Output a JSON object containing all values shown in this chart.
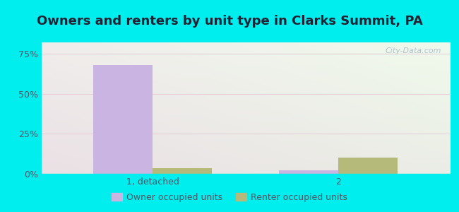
{
  "title": "Owners and renters by unit type in Clarks Summit, PA",
  "categories": [
    "1, detached",
    "2"
  ],
  "owner_values": [
    68.0,
    2.0
  ],
  "renter_values": [
    3.5,
    10.0
  ],
  "owner_color": "#c9b4e2",
  "renter_color": "#b5ba7a",
  "bg_top_right": "#f0faf0",
  "bg_bottom_left": "#d8f0d8",
  "outer_background": "#00eeee",
  "grid_color": "#e8d0d8",
  "yticks": [
    0,
    25,
    50,
    75
  ],
  "ytick_labels": [
    "0%",
    "25%",
    "50%",
    "75%"
  ],
  "ylim": [
    0,
    82
  ],
  "bar_width": 0.32,
  "legend_owner": "Owner occupied units",
  "legend_renter": "Renter occupied units",
  "watermark": "City-Data.com",
  "title_fontsize": 13,
  "tick_fontsize": 9,
  "tick_color": "#555566"
}
